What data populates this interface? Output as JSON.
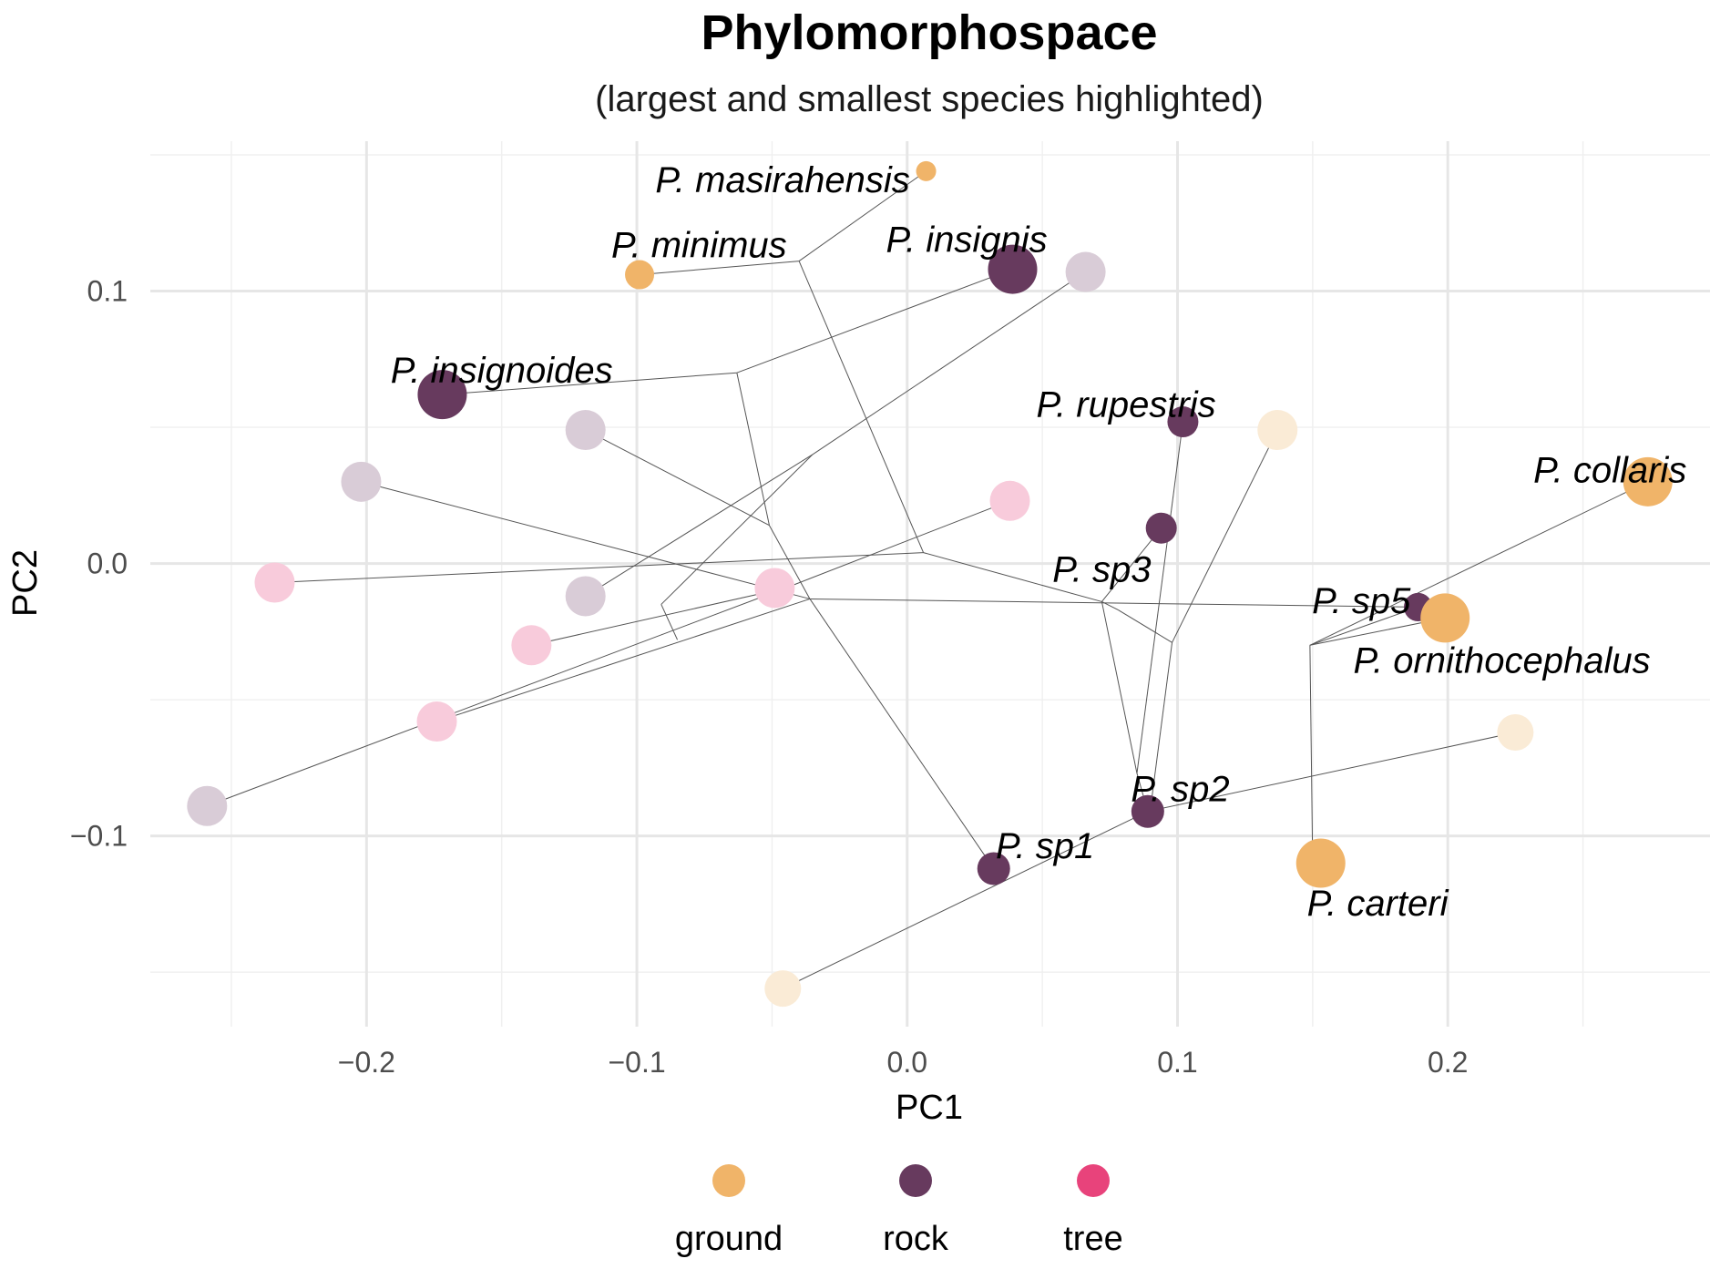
{
  "chart_data": {
    "type": "scatter",
    "title": "Phylomorphospace",
    "subtitle": "(largest and smallest species highlighted)",
    "xlabel": "PC1",
    "ylabel": "PC2",
    "xlim": [
      -0.28,
      0.297
    ],
    "ylim": [
      -0.17,
      0.155
    ],
    "x_ticks": [
      -0.2,
      -0.1,
      0.0,
      0.1,
      0.2
    ],
    "x_tick_labels": [
      "−0.2",
      "−0.1",
      "0.0",
      "0.1",
      "0.2"
    ],
    "y_ticks": [
      -0.1,
      0.0,
      0.1
    ],
    "y_tick_labels": [
      "−0.1",
      "0.0",
      "0.1"
    ],
    "grid": true,
    "legend": {
      "placement": "bottom",
      "entries": [
        {
          "label": "ground",
          "color": "#F0B469"
        },
        {
          "label": "rock",
          "color": "#673A5E"
        },
        {
          "label": "tree",
          "color": "#E8437B"
        }
      ]
    },
    "colors": {
      "ground": "#F0B469",
      "rock": "#673A5E",
      "tree": "#E8437B",
      "ground_faded": "#FAEBD6",
      "rock_faded": "#D9CCD7",
      "tree_faded": "#F8CBDB"
    },
    "points": [
      {
        "id": "masirahensis",
        "x": 0.007,
        "y": 0.144,
        "habitat": "ground",
        "highlight": true,
        "size": 0.15,
        "label": "P. masirahensis",
        "label_anchor": "end",
        "label_dx": -0.006,
        "label_dy": -0.003
      },
      {
        "id": "minimus",
        "x": -0.099,
        "y": 0.106,
        "habitat": "ground",
        "highlight": true,
        "size": 0.4,
        "label": "P. minimus",
        "label_anchor": "middle",
        "label_dx": 0.022,
        "label_dy": 0.011
      },
      {
        "id": "insignis",
        "x": 0.039,
        "y": 0.108,
        "habitat": "rock",
        "highlight": true,
        "size": 0.95,
        "label": "P. insignis",
        "label_anchor": "middle",
        "label_dx": -0.017,
        "label_dy": 0.011
      },
      {
        "id": "insignoides",
        "x": -0.172,
        "y": 0.062,
        "habitat": "rock",
        "highlight": true,
        "size": 0.95,
        "label": "P. insignoides",
        "label_anchor": "middle",
        "label_dx": 0.022,
        "label_dy": 0.009
      },
      {
        "id": "rupestris",
        "x": 0.102,
        "y": 0.052,
        "habitat": "rock",
        "highlight": true,
        "size": 0.45,
        "label": "P. rupestris",
        "label_anchor": "middle",
        "label_dx": -0.021,
        "label_dy": 0.0065
      },
      {
        "id": "sp3",
        "x": 0.094,
        "y": 0.013,
        "habitat": "rock",
        "highlight": true,
        "size": 0.45,
        "label": "P. sp3",
        "label_anchor": "middle",
        "label_dx": -0.022,
        "label_dy": -0.015
      },
      {
        "id": "sp5",
        "x": 0.189,
        "y": -0.016,
        "habitat": "rock",
        "highlight": true,
        "size": 0.38,
        "label": "P. sp5",
        "label_anchor": "middle",
        "label_dx": -0.021,
        "label_dy": 0.0025
      },
      {
        "id": "collaris",
        "x": 0.274,
        "y": 0.03,
        "habitat": "ground",
        "highlight": true,
        "size": 0.95,
        "label": "P. collaris",
        "label_anchor": "middle",
        "label_dx": -0.014,
        "label_dy": 0.0045
      },
      {
        "id": "ornithocephalus",
        "x": 0.199,
        "y": -0.02,
        "habitat": "ground",
        "highlight": true,
        "size": 0.95,
        "label": "P. ornithocephalus",
        "label_anchor": "middle",
        "label_dx": 0.021,
        "label_dy": -0.0155
      },
      {
        "id": "sp2",
        "x": 0.089,
        "y": -0.091,
        "habitat": "rock",
        "highlight": true,
        "size": 0.5,
        "label": "P. sp2",
        "label_anchor": "middle",
        "label_dx": 0.012,
        "label_dy": 0.0085
      },
      {
        "id": "sp1",
        "x": 0.032,
        "y": -0.112,
        "habitat": "rock",
        "highlight": true,
        "size": 0.5,
        "label": "P. sp1",
        "label_anchor": "middle",
        "label_dx": 0.019,
        "label_dy": 0.0085
      },
      {
        "id": "carteri",
        "x": 0.153,
        "y": -0.11,
        "habitat": "ground",
        "highlight": true,
        "size": 0.95,
        "label": "P. carteri",
        "label_anchor": "middle",
        "label_dx": 0.021,
        "label_dy": -0.0145
      },
      {
        "id": "f1",
        "x": 0.066,
        "y": 0.107,
        "habitat": "rock",
        "highlight": false,
        "size": 0.7
      },
      {
        "id": "f2",
        "x": -0.119,
        "y": 0.049,
        "habitat": "rock",
        "highlight": false,
        "size": 0.7
      },
      {
        "id": "f3",
        "x": -0.202,
        "y": 0.03,
        "habitat": "rock",
        "highlight": false,
        "size": 0.7
      },
      {
        "id": "f4",
        "x": -0.119,
        "y": -0.012,
        "habitat": "rock",
        "highlight": false,
        "size": 0.7
      },
      {
        "id": "f5",
        "x": -0.259,
        "y": -0.089,
        "habitat": "rock",
        "highlight": false,
        "size": 0.7
      },
      {
        "id": "f6",
        "x": 0.137,
        "y": 0.049,
        "habitat": "ground",
        "highlight": false,
        "size": 0.7
      },
      {
        "id": "f7",
        "x": 0.225,
        "y": -0.062,
        "habitat": "ground",
        "highlight": false,
        "size": 0.6
      },
      {
        "id": "f8",
        "x": -0.046,
        "y": -0.156,
        "habitat": "ground",
        "highlight": false,
        "size": 0.6
      },
      {
        "id": "f9",
        "x": 0.038,
        "y": 0.023,
        "habitat": "tree",
        "highlight": false,
        "size": 0.7
      },
      {
        "id": "f10",
        "x": -0.234,
        "y": -0.007,
        "habitat": "tree",
        "highlight": false,
        "size": 0.7
      },
      {
        "id": "f11",
        "x": -0.049,
        "y": -0.009,
        "habitat": "tree",
        "highlight": false,
        "size": 0.7
      },
      {
        "id": "f12",
        "x": -0.139,
        "y": -0.03,
        "habitat": "tree",
        "highlight": false,
        "size": 0.7
      },
      {
        "id": "f13",
        "x": -0.174,
        "y": -0.058,
        "habitat": "tree",
        "highlight": false,
        "size": 0.7
      }
    ],
    "tree_edges": [
      [
        0.007,
        0.144,
        -0.04,
        0.111
      ],
      [
        -0.099,
        0.106,
        -0.04,
        0.111
      ],
      [
        -0.04,
        0.111,
        0.006,
        0.004
      ],
      [
        0.039,
        0.108,
        -0.063,
        0.07
      ],
      [
        -0.172,
        0.062,
        -0.063,
        0.07
      ],
      [
        -0.063,
        0.07,
        -0.051,
        0.014
      ],
      [
        -0.119,
        0.049,
        -0.051,
        0.014
      ],
      [
        -0.051,
        0.014,
        -0.036,
        -0.013
      ],
      [
        -0.036,
        -0.013,
        0.032,
        -0.112
      ],
      [
        -0.202,
        0.03,
        -0.036,
        -0.013
      ],
      [
        -0.036,
        -0.013,
        0.189,
        -0.016
      ],
      [
        0.189,
        -0.016,
        0.149,
        -0.03
      ],
      [
        0.149,
        -0.03,
        0.274,
        0.03
      ],
      [
        0.149,
        -0.03,
        0.199,
        -0.02
      ],
      [
        0.149,
        -0.03,
        0.15,
        -0.11
      ],
      [
        0.006,
        0.004,
        0.072,
        -0.014
      ],
      [
        0.072,
        -0.014,
        0.094,
        0.013
      ],
      [
        0.072,
        -0.014,
        0.085,
        -0.077
      ],
      [
        0.085,
        -0.077,
        0.102,
        0.052
      ],
      [
        0.085,
        -0.077,
        0.089,
        -0.091
      ],
      [
        0.072,
        -0.014,
        0.078,
        -0.017
      ],
      [
        0.078,
        -0.017,
        0.098,
        -0.029
      ],
      [
        0.098,
        -0.029,
        0.137,
        0.049
      ],
      [
        0.098,
        -0.029,
        0.09,
        -0.09
      ],
      [
        0.089,
        -0.091,
        0.225,
        -0.062
      ],
      [
        0.089,
        -0.091,
        -0.046,
        -0.156
      ],
      [
        0.006,
        0.004,
        -0.234,
        -0.007
      ],
      [
        0.066,
        0.107,
        -0.035,
        0.04
      ],
      [
        -0.035,
        0.04,
        -0.119,
        -0.012
      ],
      [
        -0.035,
        0.04,
        -0.091,
        -0.015
      ],
      [
        -0.091,
        -0.015,
        -0.085,
        -0.028
      ],
      [
        0.038,
        0.023,
        -0.045,
        -0.009
      ],
      [
        -0.045,
        -0.009,
        -0.139,
        -0.03
      ],
      [
        -0.045,
        -0.009,
        -0.259,
        -0.089
      ],
      [
        -0.036,
        -0.013,
        -0.174,
        -0.058
      ]
    ]
  }
}
